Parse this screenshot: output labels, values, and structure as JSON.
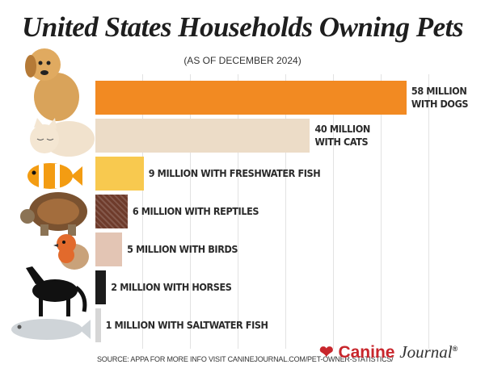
{
  "chart_data": {
    "type": "bar",
    "orientation": "horizontal",
    "title": "United States Households Owning Pets",
    "subtitle": "(AS OF DECEMBER 2024)",
    "values": [
      58,
      40,
      9,
      6,
      5,
      2,
      1
    ],
    "value_labels": [
      "58 MILLION WITH DOGS",
      "40 MILLION WITH CATS",
      "9 MILLION WITH FRESHWATER FISH",
      "6 MILLION WITH REPTILES",
      "5 MILLION WITH BIRDS",
      "2 MILLION WITH HORSES",
      "1 MILLION WITH SALTWATER FISH"
    ],
    "colors": [
      "#f28a22",
      "#ecdcc7",
      "#f8c94f",
      "#6e3b2b",
      "#e3c5b4",
      "#1c1c1c",
      "#d6d6d6"
    ],
    "xlim": [
      0,
      66
    ],
    "source": "SOURCE: APPA FOR MORE INFO VISIT CANINEJOURNAL.COM/PET-OWNER-STATISTICS/",
    "logo": {
      "name": "Canine",
      "name2": "Journal",
      "mark": "®"
    }
  }
}
